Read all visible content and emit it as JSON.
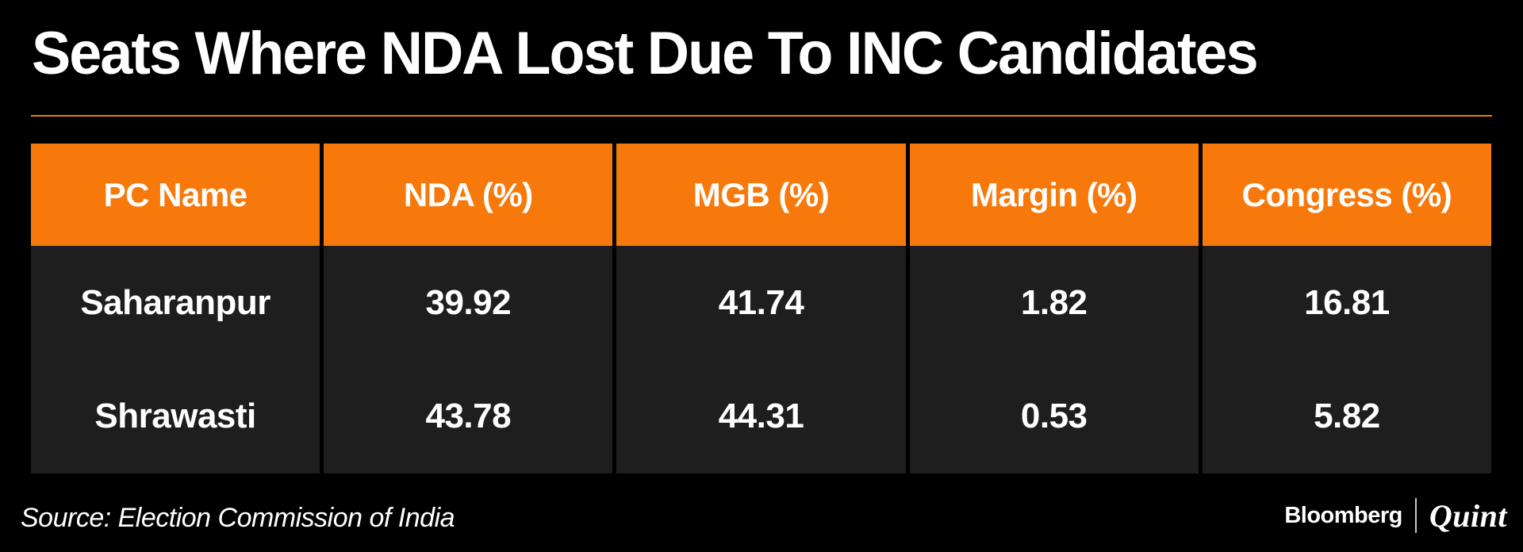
{
  "title": {
    "text": "Seats Where NDA Lost Due To INC Candidates"
  },
  "colors": {
    "background": "#000000",
    "accent_orange": "#f7790b",
    "row_background": "#1e1e1e",
    "text": "#ffffff"
  },
  "table": {
    "header": {
      "columns": [
        "PC Name",
        "NDA (%)",
        "MGB (%)",
        "Margin (%)",
        "Congress (%)"
      ]
    },
    "rows": [
      {
        "cells": [
          "Saharanpur",
          "39.92",
          "41.74",
          "1.82",
          "16.81"
        ]
      },
      {
        "cells": [
          "Shrawasti",
          "43.78",
          "44.31",
          "0.53",
          "5.82"
        ]
      }
    ]
  },
  "footer": {
    "source": "Source: Election Commission of India",
    "brand": {
      "bloomberg": "Bloomberg",
      "quint": "Quint"
    }
  },
  "chart_data": {
    "type": "table",
    "title": "Seats Where NDA Lost Due To INC Candidates",
    "columns": [
      "PC Name",
      "NDA (%)",
      "MGB (%)",
      "Margin (%)",
      "Congress (%)"
    ],
    "rows": [
      [
        "Saharanpur",
        39.92,
        41.74,
        1.82,
        16.81
      ],
      [
        "Shrawasti",
        43.78,
        44.31,
        0.53,
        5.82
      ]
    ],
    "source": "Source: Election Commission of India",
    "legend": "none",
    "grid": "off"
  }
}
